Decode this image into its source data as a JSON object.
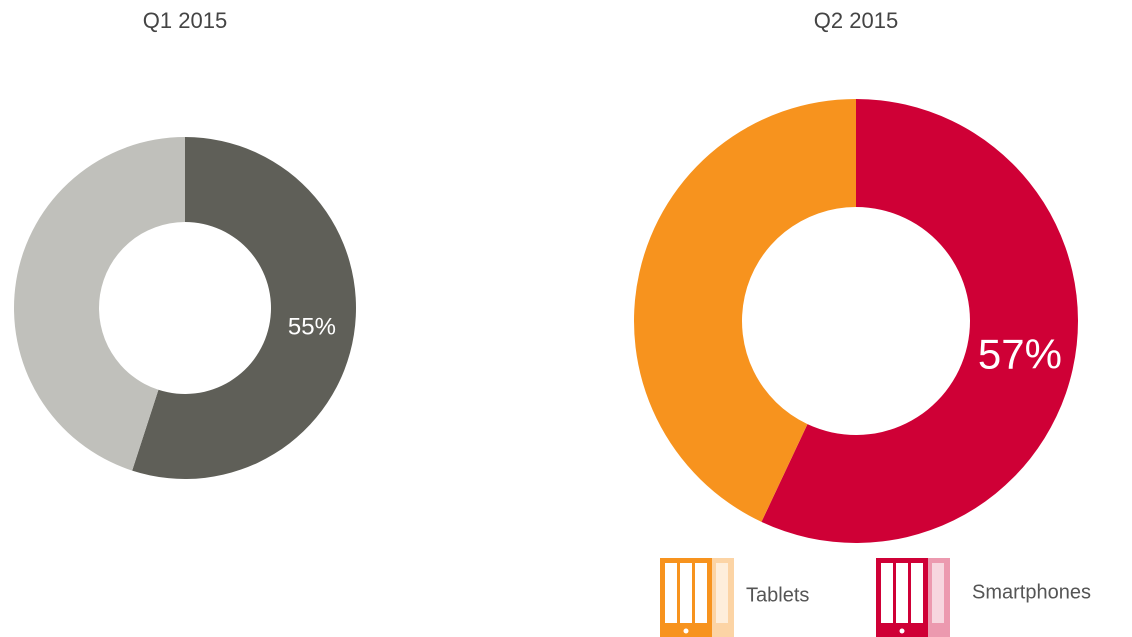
{
  "chart_data": [
    {
      "type": "donut",
      "title": "Q1 2015",
      "categories": [
        "Smartphones",
        "Tablets"
      ],
      "values": [
        55,
        45
      ],
      "value_labels": [
        "55%",
        null
      ],
      "colors": [
        "#5f5f58",
        "#c0c0bb"
      ]
    },
    {
      "type": "donut",
      "title": "Q2 2015",
      "categories": [
        "Smartphones",
        "Tablets"
      ],
      "values": [
        57,
        43
      ],
      "value_labels": [
        "57%",
        null
      ],
      "colors": [
        "#cf0036",
        "#f7931e"
      ],
      "legend": true
    }
  ]
}
